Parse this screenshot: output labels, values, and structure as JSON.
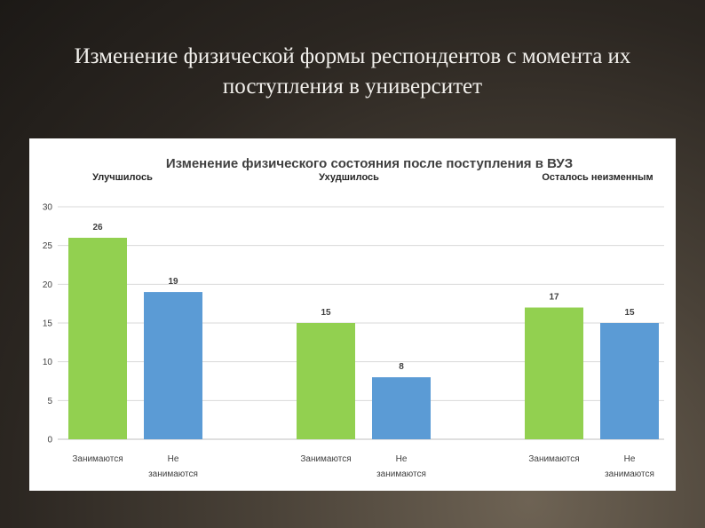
{
  "slide": {
    "title_line1": "Изменение физической формы респондентов с момента их",
    "title_line2": "поступления в университет"
  },
  "chart_data": {
    "type": "bar",
    "title": "Изменение физического состояния после поступления в ВУЗ",
    "ylim": [
      0,
      30
    ],
    "yticks": [
      0,
      5,
      10,
      15,
      20,
      25,
      30
    ],
    "grid": true,
    "colors": {
      "green": "#92d050",
      "blue": "#5b9bd5"
    },
    "groups": [
      {
        "label": "Улучшилось",
        "bars": [
          {
            "category": [
              "Занимаются"
            ],
            "value": 26,
            "color": "green"
          },
          {
            "category": [
              "Не",
              "занимаются"
            ],
            "value": 19,
            "color": "blue"
          }
        ]
      },
      {
        "label": "Ухудшилось",
        "bars": [
          {
            "category": [
              "Занимаются"
            ],
            "value": 15,
            "color": "green"
          },
          {
            "category": [
              "Не",
              "занимаются"
            ],
            "value": 8,
            "color": "blue"
          }
        ]
      },
      {
        "label": "Осталось неизменным",
        "bars": [
          {
            "category": [
              "Занимаются"
            ],
            "value": 17,
            "color": "green"
          },
          {
            "category": [
              "Не",
              "занимаются"
            ],
            "value": 15,
            "color": "blue"
          }
        ]
      }
    ]
  }
}
